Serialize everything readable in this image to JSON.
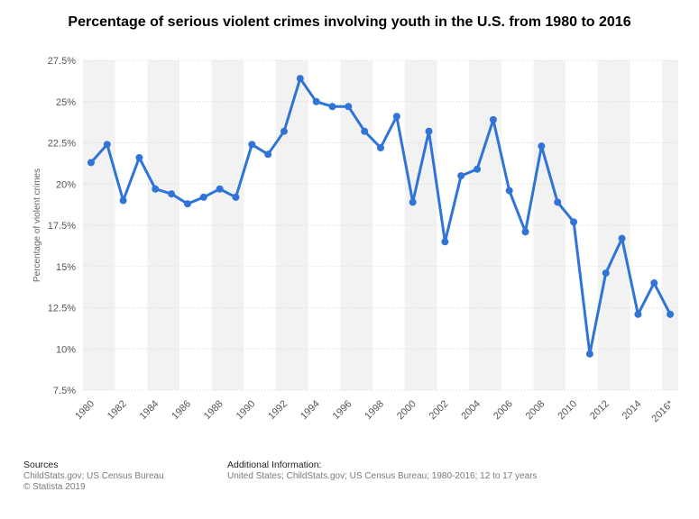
{
  "chart_data": {
    "type": "line",
    "title": "Percentage of serious violent crimes involving youth in the U.S. from 1980 to 2016",
    "xlabel": "",
    "ylabel": "Percentage of violent crimes",
    "ylim": [
      7.5,
      27.5
    ],
    "yticks": [
      7.5,
      10,
      12.5,
      15,
      17.5,
      20,
      22.5,
      25,
      27.5
    ],
    "ytick_labels": [
      "7.5%",
      "10%",
      "12.5%",
      "15%",
      "17.5%",
      "20%",
      "22.5%",
      "25%",
      "27.5%"
    ],
    "x": [
      "1980",
      "1981",
      "1982",
      "1983",
      "1984",
      "1985",
      "1986",
      "1987",
      "1988",
      "1989",
      "1990",
      "1991",
      "1992",
      "1993",
      "1994",
      "1995",
      "1996",
      "1997",
      "1998",
      "1999",
      "2000",
      "2001",
      "2002",
      "2003",
      "2004",
      "2005",
      "2006",
      "2007",
      "2008",
      "2009",
      "2010",
      "2011",
      "2012",
      "2013",
      "2014",
      "2015",
      "2016*"
    ],
    "xtick_labels": [
      "1980",
      "1982",
      "1984",
      "1986",
      "1988",
      "1990",
      "1992",
      "1994",
      "1996",
      "1998",
      "2000",
      "2002",
      "2004",
      "2006",
      "2008",
      "2010",
      "2012",
      "2014",
      "2016*"
    ],
    "series": [
      {
        "name": "Percentage of violent crimes",
        "values": [
          21.3,
          22.4,
          19.0,
          21.6,
          19.7,
          19.4,
          18.8,
          19.2,
          19.7,
          19.2,
          22.4,
          21.8,
          23.2,
          26.4,
          25.0,
          24.7,
          24.7,
          23.2,
          22.2,
          24.1,
          18.9,
          23.2,
          16.5,
          20.5,
          20.9,
          23.9,
          19.6,
          17.1,
          22.3,
          18.9,
          17.7,
          9.7,
          14.6,
          16.7,
          12.1,
          14.0,
          12.1
        ]
      }
    ],
    "grid": true,
    "colors": {
      "line": "#2f74d6",
      "band": "#f2f2f2",
      "grid": "#d6d6d6",
      "tick_text": "#555555"
    }
  },
  "footer": {
    "sources_heading": "Sources",
    "sources_line1": "ChildStats.gov; US Census Bureau",
    "sources_line2": "© Statista 2019",
    "additional_heading": "Additional Information:",
    "additional_line1": "United States; ChildStats.gov; US Census Bureau; 1980-2016; 12 to 17 years"
  }
}
